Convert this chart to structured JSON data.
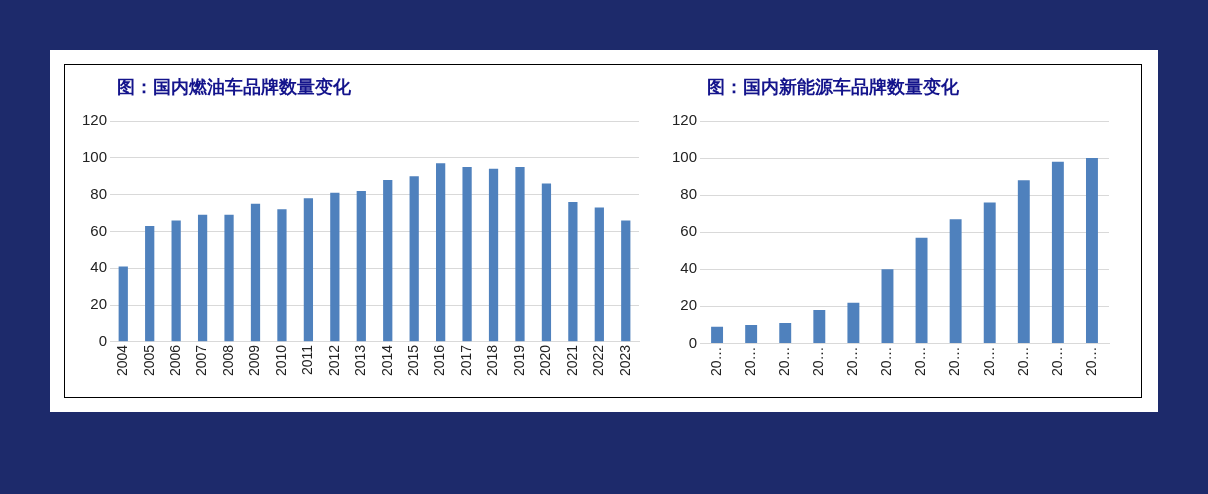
{
  "chart_data": [
    {
      "type": "bar",
      "title": "图：国内燃油车品牌数量变化",
      "categories": [
        "2004",
        "2005",
        "2006",
        "2007",
        "2008",
        "2009",
        "2010",
        "2011",
        "2012",
        "2013",
        "2014",
        "2015",
        "2016",
        "2017",
        "2018",
        "2019",
        "2020",
        "2021",
        "2022",
        "2023"
      ],
      "values": [
        41,
        63,
        66,
        69,
        69,
        75,
        72,
        78,
        81,
        82,
        88,
        90,
        97,
        95,
        94,
        95,
        86,
        76,
        73,
        66
      ],
      "color": "#4f81bd",
      "ylim": [
        0,
        120
      ],
      "yticks": [
        0,
        20,
        40,
        60,
        80,
        100,
        120
      ],
      "grid": "y",
      "legend": false
    },
    {
      "type": "bar",
      "title": "图：国内新能源车品牌数量变化",
      "categories": [
        "20…",
        "20…",
        "20…",
        "20…",
        "20…",
        "20…",
        "20…",
        "20…",
        "20…",
        "20…",
        "20…",
        "20…"
      ],
      "values": [
        9,
        10,
        11,
        18,
        22,
        40,
        57,
        67,
        76,
        88,
        98,
        100
      ],
      "color": "#4f81bd",
      "ylim": [
        0,
        120
      ],
      "yticks": [
        0,
        20,
        40,
        60,
        80,
        100,
        120
      ],
      "grid": "y",
      "legend": false
    }
  ]
}
